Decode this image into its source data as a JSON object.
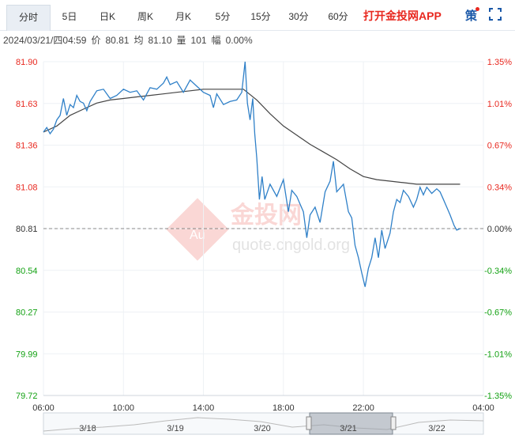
{
  "tabs": [
    {
      "label": "分时",
      "active": true
    },
    {
      "label": "5日"
    },
    {
      "label": "日K"
    },
    {
      "label": "周K"
    },
    {
      "label": "月K"
    },
    {
      "label": "5分"
    },
    {
      "label": "15分"
    },
    {
      "label": "30分"
    },
    {
      "label": "60分"
    }
  ],
  "brand": "打开金投网APP",
  "strategy_label": "策",
  "info": {
    "datetime": "2024/03/21/四04:59",
    "price_label": "价",
    "price": "80.81",
    "avg_label": "均",
    "avg": "81.10",
    "vol_label": "量",
    "vol": "101",
    "range_label": "幅",
    "range": "0.00%"
  },
  "watermark": {
    "logo_text": "金投网",
    "url": "quote.cngold.org",
    "badge": "Au"
  },
  "colors": {
    "up": "#e8281f",
    "down": "#12a112",
    "price": "#2f80c8",
    "avg": "#444444",
    "ref": "#888888"
  },
  "chart_data": {
    "type": "line",
    "ylim": [
      79.72,
      81.9
    ],
    "reference_price": 80.81,
    "y_ticks_left": [
      "81.90",
      "81.63",
      "81.36",
      "81.08",
      "80.81",
      "80.54",
      "80.27",
      "79.99",
      "79.72"
    ],
    "y_ticks_right": [
      "1.35%",
      "1.01%",
      "0.67%",
      "0.34%",
      "0.00%",
      "-0.34%",
      "-0.67%",
      "-1.01%",
      "-1.35%"
    ],
    "x_ticks": [
      {
        "label": "06:00",
        "t": 0
      },
      {
        "label": "10:00",
        "t": 240
      },
      {
        "label": "14:00",
        "t": 480
      },
      {
        "label": "18:00",
        "t": 720
      },
      {
        "label": "22:00",
        "t": 960
      },
      {
        "label": "04:00",
        "t": 1320
      }
    ],
    "x_range": [
      0,
      1320
    ],
    "series": [
      {
        "key": "price",
        "points": [
          [
            0,
            81.44
          ],
          [
            10,
            81.47
          ],
          [
            20,
            81.43
          ],
          [
            30,
            81.46
          ],
          [
            40,
            81.52
          ],
          [
            50,
            81.55
          ],
          [
            60,
            81.66
          ],
          [
            70,
            81.55
          ],
          [
            80,
            81.62
          ],
          [
            90,
            81.6
          ],
          [
            100,
            81.68
          ],
          [
            110,
            81.64
          ],
          [
            120,
            81.63
          ],
          [
            130,
            81.58
          ],
          [
            140,
            81.64
          ],
          [
            160,
            81.71
          ],
          [
            180,
            81.72
          ],
          [
            200,
            81.66
          ],
          [
            220,
            81.68
          ],
          [
            240,
            81.72
          ],
          [
            260,
            81.7
          ],
          [
            280,
            81.71
          ],
          [
            300,
            81.65
          ],
          [
            320,
            81.73
          ],
          [
            340,
            81.72
          ],
          [
            360,
            81.76
          ],
          [
            370,
            81.8
          ],
          [
            380,
            81.75
          ],
          [
            400,
            81.77
          ],
          [
            420,
            81.7
          ],
          [
            440,
            81.78
          ],
          [
            460,
            81.74
          ],
          [
            480,
            81.7
          ],
          [
            500,
            81.68
          ],
          [
            510,
            81.6
          ],
          [
            520,
            81.69
          ],
          [
            540,
            81.62
          ],
          [
            560,
            81.64
          ],
          [
            580,
            81.65
          ],
          [
            595,
            81.7
          ],
          [
            605,
            81.9
          ],
          [
            612,
            81.63
          ],
          [
            620,
            81.52
          ],
          [
            628,
            81.66
          ],
          [
            634,
            81.43
          ],
          [
            640,
            81.27
          ],
          [
            648,
            81.0
          ],
          [
            656,
            81.15
          ],
          [
            664,
            81.0
          ],
          [
            680,
            81.1
          ],
          [
            700,
            81.02
          ],
          [
            720,
            81.13
          ],
          [
            735,
            80.92
          ],
          [
            745,
            81.06
          ],
          [
            760,
            81.02
          ],
          [
            780,
            80.92
          ],
          [
            790,
            80.75
          ],
          [
            800,
            80.9
          ],
          [
            815,
            80.95
          ],
          [
            830,
            80.85
          ],
          [
            845,
            81.05
          ],
          [
            860,
            81.12
          ],
          [
            870,
            81.25
          ],
          [
            880,
            81.05
          ],
          [
            900,
            81.1
          ],
          [
            915,
            80.92
          ],
          [
            925,
            80.88
          ],
          [
            935,
            80.7
          ],
          [
            945,
            80.62
          ],
          [
            955,
            80.52
          ],
          [
            965,
            80.43
          ],
          [
            975,
            80.55
          ],
          [
            985,
            80.62
          ],
          [
            995,
            80.75
          ],
          [
            1005,
            80.62
          ],
          [
            1015,
            80.8
          ],
          [
            1025,
            80.68
          ],
          [
            1040,
            80.78
          ],
          [
            1050,
            80.92
          ],
          [
            1060,
            81.0
          ],
          [
            1070,
            80.98
          ],
          [
            1080,
            81.06
          ],
          [
            1095,
            81.02
          ],
          [
            1110,
            80.95
          ],
          [
            1120,
            81.0
          ],
          [
            1130,
            81.08
          ],
          [
            1140,
            81.03
          ],
          [
            1150,
            81.08
          ],
          [
            1165,
            81.04
          ],
          [
            1180,
            81.07
          ],
          [
            1190,
            81.05
          ],
          [
            1200,
            81.0
          ],
          [
            1210,
            80.95
          ],
          [
            1220,
            80.9
          ],
          [
            1232,
            80.83
          ],
          [
            1240,
            80.8
          ],
          [
            1250,
            80.81
          ]
        ]
      },
      {
        "key": "avg",
        "points": [
          [
            0,
            81.44
          ],
          [
            40,
            81.48
          ],
          [
            80,
            81.55
          ],
          [
            120,
            81.59
          ],
          [
            160,
            81.63
          ],
          [
            200,
            81.65
          ],
          [
            240,
            81.66
          ],
          [
            280,
            81.67
          ],
          [
            320,
            81.68
          ],
          [
            360,
            81.69
          ],
          [
            400,
            81.7
          ],
          [
            440,
            81.71
          ],
          [
            480,
            81.72
          ],
          [
            520,
            81.72
          ],
          [
            560,
            81.72
          ],
          [
            600,
            81.72
          ],
          [
            640,
            81.65
          ],
          [
            680,
            81.56
          ],
          [
            720,
            81.48
          ],
          [
            760,
            81.42
          ],
          [
            800,
            81.36
          ],
          [
            840,
            81.31
          ],
          [
            880,
            81.26
          ],
          [
            920,
            81.2
          ],
          [
            960,
            81.15
          ],
          [
            1000,
            81.13
          ],
          [
            1040,
            81.12
          ],
          [
            1080,
            81.11
          ],
          [
            1120,
            81.1
          ],
          [
            1160,
            81.1
          ],
          [
            1200,
            81.1
          ],
          [
            1250,
            81.1
          ]
        ]
      }
    ]
  },
  "navigator": {
    "labels": [
      "3/18",
      "3/19",
      "3/20",
      "3/21",
      "3/22"
    ]
  }
}
